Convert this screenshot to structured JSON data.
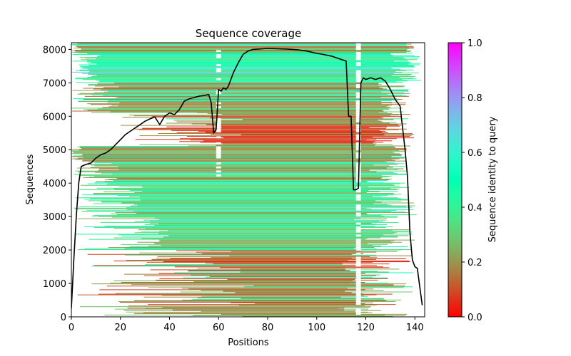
{
  "chart_data": {
    "type": "heatmap",
    "title": "Sequence coverage",
    "xlabel": "Positions",
    "ylabel": "Sequences",
    "xlim": [
      0,
      144
    ],
    "ylim": [
      0,
      8200
    ],
    "xticks": [
      0,
      20,
      40,
      60,
      80,
      100,
      120,
      140
    ],
    "yticks": [
      0,
      1000,
      2000,
      3000,
      4000,
      5000,
      6000,
      7000,
      8000
    ],
    "grid": false,
    "colorbar": {
      "label": "Sequence identity to query",
      "colormap": "rainbow_r",
      "range": [
        0.0,
        1.0
      ],
      "ticks": [
        0.0,
        0.2,
        0.4,
        0.6,
        0.8,
        1.0
      ],
      "tick_labels": [
        "0.0",
        "0.2",
        "0.4",
        "0.6",
        "0.8",
        "1.0"
      ],
      "placement": "right"
    },
    "alignment_blocks": [
      {
        "seq_range": [
          0,
          250
        ],
        "identity": 0.22,
        "start_range": [
          0,
          70
        ],
        "end_range": [
          108,
          142
        ]
      },
      {
        "seq_range": [
          250,
          1000
        ],
        "identity": 0.2,
        "start_range": [
          2,
          75
        ],
        "end_range": [
          100,
          140
        ]
      },
      {
        "seq_range": [
          1000,
          2000
        ],
        "identity": 0.17,
        "start_range": [
          2,
          70
        ],
        "end_range": [
          110,
          140
        ]
      },
      {
        "seq_range": [
          2000,
          3000
        ],
        "identity": 0.33,
        "start_range": [
          1,
          40
        ],
        "end_range": [
          115,
          140
        ]
      },
      {
        "seq_range": [
          3000,
          4000
        ],
        "identity": 0.36,
        "start_range": [
          1,
          30
        ],
        "end_range": [
          120,
          142
        ]
      },
      {
        "seq_range": [
          4000,
          4650
        ],
        "identity": 0.27,
        "start_range": [
          1,
          20
        ],
        "end_range": [
          120,
          138
        ]
      },
      {
        "seq_range": [
          4650,
          5100
        ],
        "identity": 0.24,
        "start_range": [
          0,
          5
        ],
        "end_range": [
          130,
          137
        ]
      },
      {
        "seq_range": [
          5100,
          6100
        ],
        "identity": 0.13,
        "start_range": [
          20,
          70
        ],
        "end_range": [
          120,
          140
        ]
      },
      {
        "seq_range": [
          6100,
          7000
        ],
        "identity": 0.25,
        "start_range": [
          0,
          20
        ],
        "end_range": [
          125,
          138
        ]
      },
      {
        "seq_range": [
          7000,
          7900
        ],
        "identity": 0.42,
        "start_range": [
          0,
          12
        ],
        "end_range": [
          130,
          143
        ]
      },
      {
        "seq_range": [
          7900,
          8200
        ],
        "identity": 0.24,
        "start_range": [
          0,
          4
        ],
        "end_range": [
          136,
          140
        ]
      }
    ],
    "gap_columns": [
      {
        "position_range": [
          116,
          118
        ],
        "seq_range": [
          0,
          8200
        ],
        "note": "low-coverage column"
      },
      {
        "position_range": [
          59,
          61
        ],
        "seq_range": [
          4200,
          8200
        ],
        "note": "partial gaps"
      }
    ],
    "series": [
      {
        "name": "coverage",
        "color": "#000000",
        "x": [
          0,
          1,
          2,
          3,
          4,
          6,
          8,
          10,
          12,
          14,
          16,
          18,
          20,
          22,
          24,
          26,
          28,
          30,
          32,
          34,
          36,
          38,
          40,
          42,
          44,
          46,
          48,
          50,
          52,
          54,
          56,
          57,
          58,
          59,
          60,
          61,
          62,
          63,
          64,
          66,
          68,
          70,
          72,
          74,
          76,
          78,
          80,
          84,
          88,
          92,
          96,
          100,
          102,
          106,
          110,
          112,
          113,
          114,
          115,
          116,
          117,
          118,
          119,
          120,
          122,
          124,
          126,
          128,
          130,
          132,
          134,
          136,
          137,
          138,
          139,
          140,
          141,
          142,
          143
        ],
        "y": [
          250,
          1700,
          3000,
          4000,
          4500,
          4560,
          4600,
          4750,
          4850,
          4900,
          5000,
          5150,
          5300,
          5450,
          5550,
          5650,
          5750,
          5850,
          5920,
          5980,
          5750,
          6000,
          6100,
          6050,
          6200,
          6450,
          6520,
          6560,
          6600,
          6620,
          6650,
          6400,
          5500,
          5600,
          6800,
          6750,
          6850,
          6800,
          6900,
          7300,
          7600,
          7850,
          7950,
          8000,
          8010,
          8020,
          8030,
          8020,
          8010,
          7990,
          7950,
          7880,
          7860,
          7800,
          7700,
          7650,
          6000,
          6000,
          3800,
          3800,
          3850,
          7000,
          7150,
          7100,
          7150,
          7100,
          7150,
          7050,
          6800,
          6500,
          6300,
          5000,
          4200,
          2500,
          1700,
          1500,
          1450,
          900,
          350
        ]
      }
    ]
  }
}
